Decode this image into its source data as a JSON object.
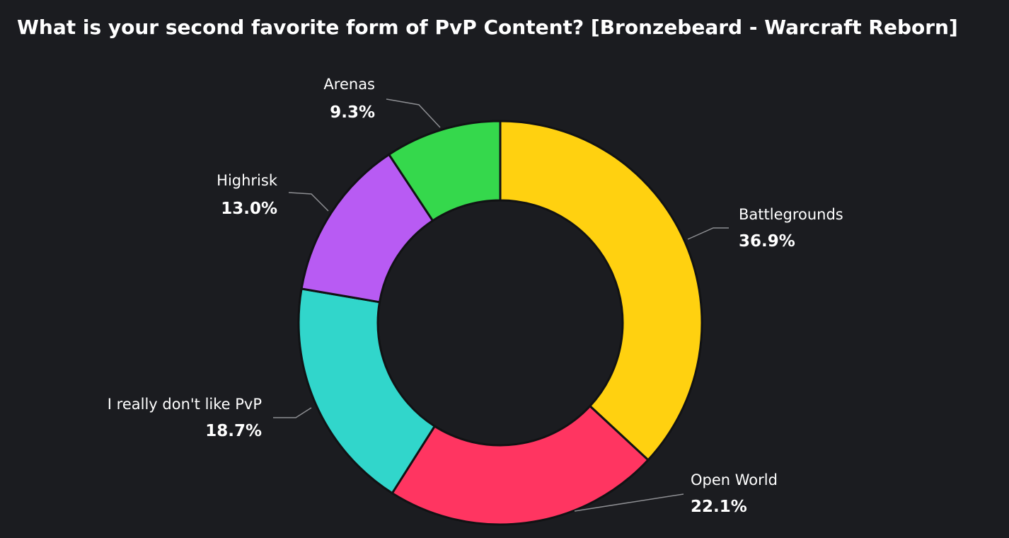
{
  "chart_data": {
    "type": "pie",
    "title": "What is your second favorite form of PvP Content? [Bronzebeard - Warcraft Reborn]",
    "donut": true,
    "slices": [
      {
        "label": "Battlegrounds",
        "value": 36.9,
        "display": "36.9%",
        "color": "#ffd110"
      },
      {
        "label": "Open World",
        "value": 22.1,
        "display": "22.1%",
        "color": "#ff3561"
      },
      {
        "label": "I really don't like PvP",
        "value": 18.7,
        "display": "18.7%",
        "color": "#31d6cb"
      },
      {
        "label": "Highrisk",
        "value": 13.0,
        "display": "13.0%",
        "color": "#b85bf3"
      },
      {
        "label": "Arenas",
        "value": 9.3,
        "display": "9.3%",
        "color": "#35d84c"
      }
    ]
  }
}
